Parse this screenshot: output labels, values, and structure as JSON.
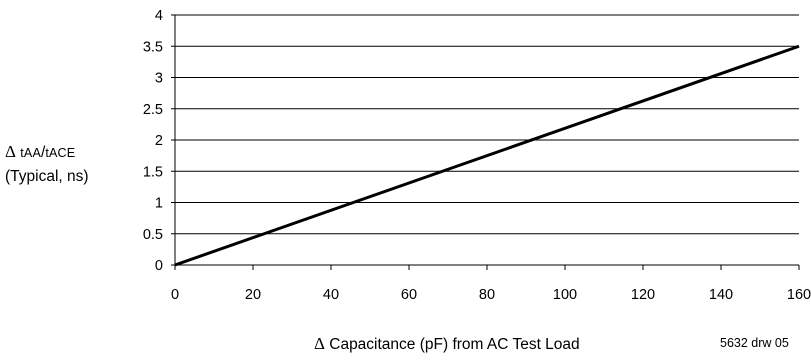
{
  "chart_data": {
    "type": "line",
    "ylabel": {
      "delta_symbol": "Δ",
      "sub1": "tAA",
      "slash": "/",
      "sub2": "tACE",
      "line2": "(Typical, ns)"
    },
    "xlabel": {
      "delta_symbol": "Δ",
      "text": "Capacitance (pF) from AC Test Load"
    },
    "note": "5632 drw 05",
    "xlim": [
      0,
      160
    ],
    "ylim": [
      0,
      4
    ],
    "x_ticks": [
      0,
      20,
      40,
      60,
      80,
      100,
      120,
      140,
      160
    ],
    "y_ticks": [
      0,
      0.5,
      1,
      1.5,
      2,
      2.5,
      3,
      3.5,
      4
    ],
    "grid": "horizontal",
    "series": [
      {
        "x": [
          0,
          160
        ],
        "y": [
          0,
          3.5
        ]
      }
    ],
    "colors": {
      "line": "#000000",
      "grid": "#000000"
    }
  }
}
